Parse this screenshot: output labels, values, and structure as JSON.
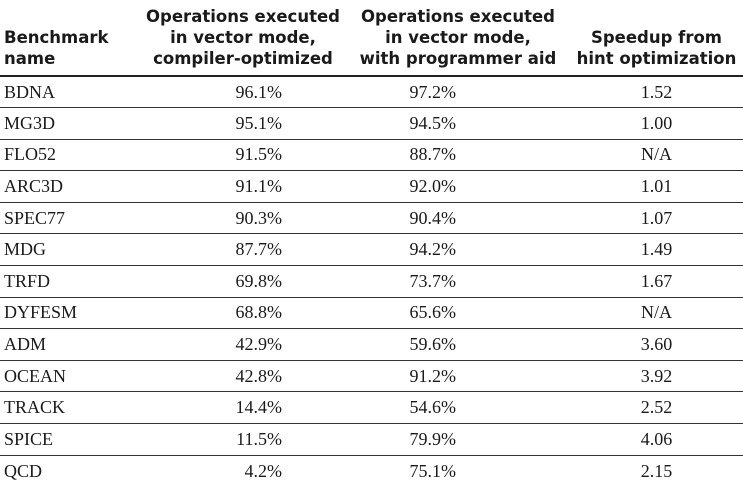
{
  "table": {
    "headers": [
      [
        "Benchmark",
        "name"
      ],
      [
        "Operations executed",
        "in vector mode,",
        "compiler-optimized"
      ],
      [
        "Operations executed",
        "in vector mode,",
        "with programmer aid"
      ],
      [
        "Speedup from",
        "hint optimization"
      ]
    ],
    "rows": [
      [
        "BDNA",
        "96.1%",
        "97.2%",
        "1.52"
      ],
      [
        "MG3D",
        "95.1%",
        "94.5%",
        "1.00"
      ],
      [
        "FLO52",
        "91.5%",
        "88.7%",
        "N/A"
      ],
      [
        "ARC3D",
        "91.1%",
        "92.0%",
        "1.01"
      ],
      [
        "SPEC77",
        "90.3%",
        "90.4%",
        "1.07"
      ],
      [
        "MDG",
        "87.7%",
        "94.2%",
        "1.49"
      ],
      [
        "TRFD",
        "69.8%",
        "73.7%",
        "1.67"
      ],
      [
        "DYFESM",
        "68.8%",
        "65.6%",
        "N/A"
      ],
      [
        "ADM",
        "42.9%",
        "59.6%",
        "3.60"
      ],
      [
        "OCEAN",
        "42.8%",
        "91.2%",
        "3.92"
      ],
      [
        "TRACK",
        "14.4%",
        "54.6%",
        "2.52"
      ],
      [
        "SPICE",
        "11.5%",
        "79.9%",
        "4.06"
      ],
      [
        "QCD",
        "4.2%",
        "75.1%",
        "2.15"
      ]
    ]
  }
}
